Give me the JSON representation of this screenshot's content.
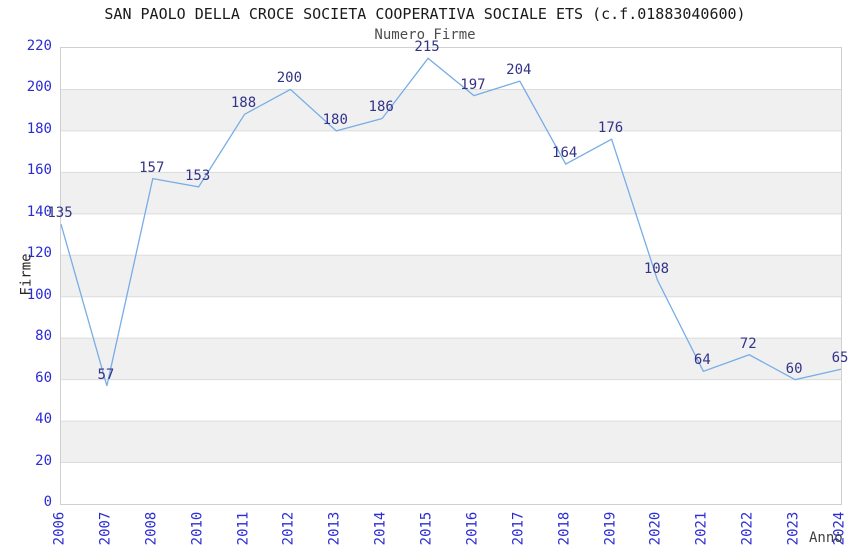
{
  "header": {
    "title": "SAN PAOLO DELLA CROCE SOCIETA COOPERATIVA SOCIALE ETS (c.f.01883040600)",
    "subtitle": "Numero Firme"
  },
  "chart_data": {
    "type": "line",
    "title": "SAN PAOLO DELLA CROCE SOCIETA COOPERATIVA SOCIALE ETS (c.f.01883040600)",
    "subtitle": "Numero Firme",
    "xlabel": "Anno",
    "ylabel": "Firme",
    "categories": [
      "2006",
      "2007",
      "2008",
      "2010",
      "2011",
      "2012",
      "2013",
      "2014",
      "2015",
      "2016",
      "2017",
      "2018",
      "2019",
      "2020",
      "2021",
      "2022",
      "2023",
      "2024"
    ],
    "values": [
      135,
      57,
      157,
      153,
      188,
      200,
      180,
      186,
      215,
      197,
      204,
      164,
      176,
      108,
      64,
      72,
      60,
      65
    ],
    "ylim": [
      0,
      220
    ],
    "ytick_step": 20,
    "grid": true,
    "legend": false,
    "band_fill": "alternating horizontal bands",
    "colors": {
      "line": "#78ade6",
      "data_label": "#333388",
      "tick_label": "#2b2bd4",
      "grid_line": "#dcdcdc",
      "band": "#f0f0f0",
      "plot_border": "#d0d0d0",
      "title": "#1a1a1a",
      "axis_title": "#404040"
    }
  }
}
